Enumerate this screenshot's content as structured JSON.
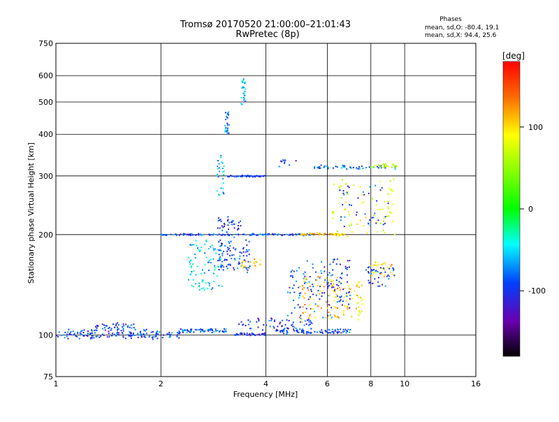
{
  "chart_data": {
    "type": "scatter",
    "title": "Tromsø 20170520 21:00:00–21:01:43",
    "subtitle": "RwPretec (8p)",
    "xlabel": "Frequency [MHz]",
    "ylabel": "Stationary phase Virtual Height [km]",
    "x_scale": "log",
    "y_scale": "log",
    "xlim": [
      1,
      16
    ],
    "ylim": [
      75,
      750
    ],
    "x_ticks": [
      1,
      2,
      4,
      6,
      8,
      10,
      16
    ],
    "y_ticks": [
      75,
      100,
      200,
      300,
      400,
      500,
      600,
      750
    ],
    "grid": true,
    "colorbar": {
      "label": "[deg]",
      "range": [
        -180,
        180
      ],
      "ticks": [
        100,
        0,
        -100
      ]
    },
    "phase_info": {
      "title": "Phases",
      "line_o": "mean, sd,O: -80.4, 19.1",
      "line_x": "mean, sd,X:  94.4, 25.6"
    },
    "traces": [
      {
        "x0": 1.0,
        "x1": 2.3,
        "y0": 98,
        "y1": 103,
        "phase": -95,
        "n": 160,
        "jitter": 0.03
      },
      {
        "x0": 1.3,
        "x1": 1.7,
        "y0": 104,
        "y1": 108,
        "phase": -90,
        "n": 40,
        "jitter": 0.02
      },
      {
        "x0": 2.3,
        "x1": 3.1,
        "y0": 102,
        "y1": 104,
        "phase": -85,
        "n": 60,
        "jitter": 0.015
      },
      {
        "x0": 3.2,
        "x1": 4.0,
        "y0": 100,
        "y1": 101,
        "phase": -100,
        "n": 40,
        "jitter": 0.01
      },
      {
        "x0": 4.2,
        "x1": 7.0,
        "y0": 101,
        "y1": 104,
        "phase": -92,
        "n": 90,
        "jitter": 0.012
      },
      {
        "x0": 3.3,
        "x1": 5.5,
        "y0": 104,
        "y1": 112,
        "phase": -98,
        "n": 60,
        "jitter": 0.015
      },
      {
        "x0": 4.6,
        "x1": 6.2,
        "y0": 110,
        "y1": 165,
        "phase": -90,
        "n": 80,
        "jitter": 0.03
      },
      {
        "x0": 5.0,
        "x1": 6.5,
        "y0": 110,
        "y1": 150,
        "phase": 110,
        "n": 70,
        "jitter": 0.03
      },
      {
        "x0": 6.2,
        "x1": 7.6,
        "y0": 110,
        "y1": 145,
        "phase": 100,
        "n": 60,
        "jitter": 0.03
      },
      {
        "x0": 6.0,
        "x1": 7.0,
        "y0": 120,
        "y1": 170,
        "phase": -100,
        "n": 60,
        "jitter": 0.03
      },
      {
        "x0": 7.6,
        "x1": 9.4,
        "y0": 140,
        "y1": 160,
        "phase": -95,
        "n": 40,
        "jitter": 0.03
      },
      {
        "x0": 8.0,
        "x1": 9.4,
        "y0": 150,
        "y1": 165,
        "phase": 110,
        "n": 25,
        "jitter": 0.02
      },
      {
        "x0": 2.4,
        "x1": 3.0,
        "y0": 135,
        "y1": 190,
        "phase": -55,
        "n": 90,
        "jitter": 0.035
      },
      {
        "x0": 2.9,
        "x1": 3.6,
        "y0": 155,
        "y1": 195,
        "phase": -95,
        "n": 90,
        "jitter": 0.04
      },
      {
        "x0": 3.4,
        "x1": 3.9,
        "y0": 160,
        "y1": 168,
        "phase": 110,
        "n": 20,
        "jitter": 0.02
      },
      {
        "x0": 2.0,
        "x1": 5.5,
        "y0": 199,
        "y1": 201,
        "phase": -90,
        "n": 130,
        "jitter": 0.005
      },
      {
        "x0": 5.0,
        "x1": 6.8,
        "y0": 199,
        "y1": 202,
        "phase": 115,
        "n": 50,
        "jitter": 0.005
      },
      {
        "x0": 2.9,
        "x1": 3.4,
        "y0": 200,
        "y1": 225,
        "phase": -100,
        "n": 40,
        "jitter": 0.03
      },
      {
        "x0": 3.1,
        "x1": 4.0,
        "y0": 298,
        "y1": 301,
        "phase": -95,
        "n": 50,
        "jitter": 0.004
      },
      {
        "x0": 2.9,
        "x1": 3.05,
        "y0": 260,
        "y1": 350,
        "phase": -60,
        "n": 30,
        "jitter": 0.01
      },
      {
        "x0": 3.05,
        "x1": 3.15,
        "y0": 400,
        "y1": 470,
        "phase": -80,
        "n": 25,
        "jitter": 0.01
      },
      {
        "x0": 3.4,
        "x1": 3.5,
        "y0": 490,
        "y1": 590,
        "phase": -55,
        "n": 25,
        "jitter": 0.01
      },
      {
        "x0": 5.5,
        "x1": 9.5,
        "y0": 315,
        "y1": 322,
        "phase": -85,
        "n": 50,
        "jitter": 0.01
      },
      {
        "x0": 8.0,
        "x1": 9.5,
        "y0": 318,
        "y1": 325,
        "phase": 60,
        "n": 30,
        "jitter": 0.01
      },
      {
        "x0": 6.2,
        "x1": 9.4,
        "y0": 200,
        "y1": 290,
        "phase": 80,
        "n": 70,
        "jitter": 0.04
      },
      {
        "x0": 6.5,
        "x1": 9.0,
        "y0": 210,
        "y1": 280,
        "phase": -90,
        "n": 40,
        "jitter": 0.04
      },
      {
        "x0": 4.3,
        "x1": 5.0,
        "y0": 318,
        "y1": 335,
        "phase": -100,
        "n": 10,
        "jitter": 0.01
      }
    ]
  }
}
